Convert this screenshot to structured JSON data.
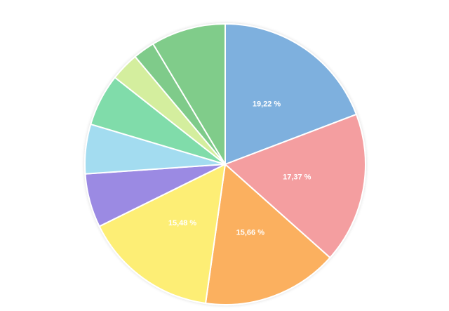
{
  "chart_data": {
    "type": "pie",
    "values": [
      19.22,
      17.37,
      15.66,
      15.48,
      6.2,
      5.7,
      6.0,
      3.3,
      2.5,
      8.6
    ],
    "value_labels": [
      "19,22 %",
      "17,37 %",
      "15,66 %",
      "15,48 %",
      null,
      null,
      null,
      null,
      null,
      null
    ],
    "colors": [
      "#7eb0de",
      "#f49ea0",
      "#fbb05e",
      "#fdee74",
      "#9b8ae3",
      "#a3dcf0",
      "#80dcaa",
      "#d4ee9e",
      "#7fcb8a",
      "#80cc8a"
    ]
  }
}
